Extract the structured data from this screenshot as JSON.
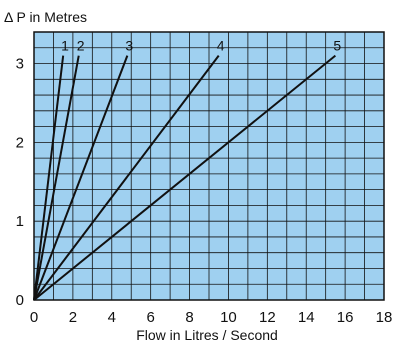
{
  "chart_data": {
    "type": "line",
    "ylabel": "Δ P in Metres",
    "xlabel": "Flow in Litres / Second",
    "xlim": [
      0,
      18
    ],
    "ylim": [
      0,
      3.4
    ],
    "x_ticks": [
      0,
      2,
      4,
      6,
      8,
      10,
      12,
      14,
      16,
      18
    ],
    "y_ticks": [
      0,
      1,
      2,
      3
    ],
    "grid": true,
    "minor_grid_step_x": 1,
    "minor_grid_step_y": 0.2,
    "plot_background": "#9fd0f0",
    "grid_color": "#111111",
    "line_color": "#111111",
    "series": [
      {
        "name": "1",
        "x": [
          0,
          1.5
        ],
        "y": [
          0,
          3.1
        ]
      },
      {
        "name": "2",
        "x": [
          0,
          2.3
        ],
        "y": [
          0,
          3.1
        ]
      },
      {
        "name": "3",
        "x": [
          0,
          4.8
        ],
        "y": [
          0,
          3.1
        ]
      },
      {
        "name": "4",
        "x": [
          0,
          9.5
        ],
        "y": [
          0,
          3.1
        ]
      },
      {
        "name": "5",
        "x": [
          0,
          15.5
        ],
        "y": [
          0,
          3.1
        ]
      }
    ]
  }
}
